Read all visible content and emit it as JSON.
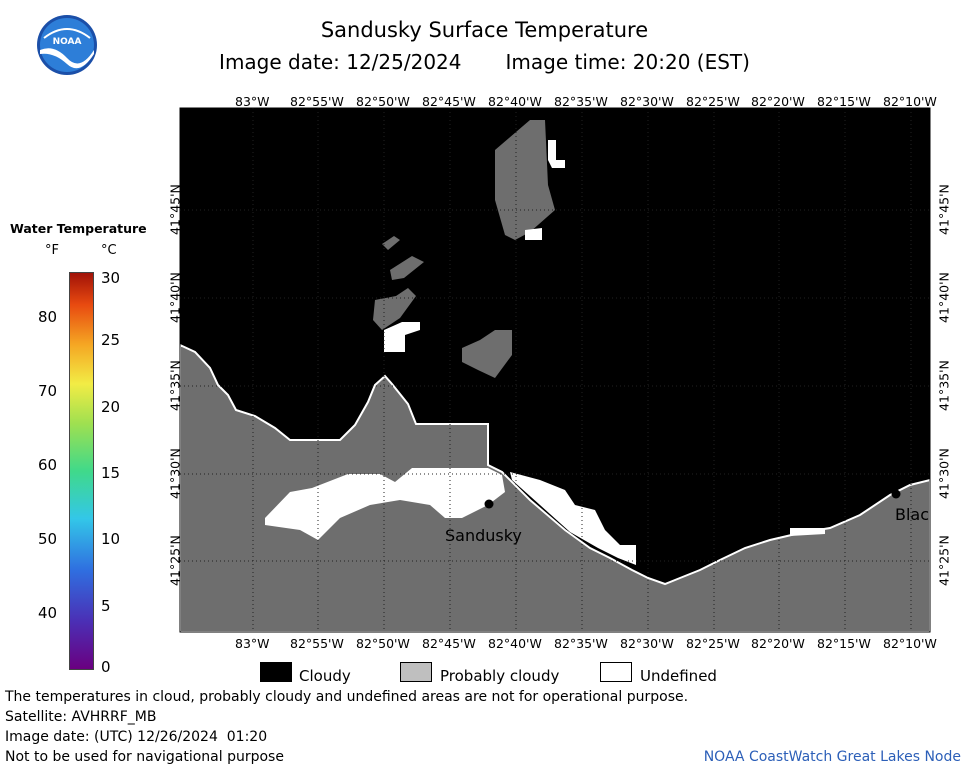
{
  "header": {
    "title": "Sandusky Surface Temperature",
    "image_date": "Image date: 12/25/2024",
    "image_time": "Image time: 20:20 (EST)"
  },
  "logo": {
    "text": "NOAA",
    "icon": "noaa-logo"
  },
  "map": {
    "lon_ticks": [
      "83°W",
      "82°55'W",
      "82°50'W",
      "82°45'W",
      "82°40'W",
      "82°35'W",
      "82°30'W",
      "82°25'W",
      "82°20'W",
      "82°15'W",
      "82°10'W"
    ],
    "lat_ticks": [
      "41°45'N",
      "41°40'N",
      "41°35'N",
      "41°30'N",
      "41°25'N"
    ],
    "places": {
      "sandusky": "Sandusky",
      "edge_label": "Blac"
    },
    "colors": {
      "cloudy": "#000000",
      "probably_cloudy": "#6e6e6e",
      "undefined": "#ffffff",
      "legend_probably": "#bfbfbf"
    }
  },
  "colorbar": {
    "title": "Water Temperature",
    "unit_f": "°F",
    "unit_c": "°C",
    "f_labels": [
      "80",
      "70",
      "60",
      "50",
      "40"
    ],
    "c_labels": [
      "30",
      "25",
      "20",
      "15",
      "10",
      "5",
      "0"
    ],
    "range_c": [
      0,
      30
    ]
  },
  "legend": {
    "cloudy": "Cloudy",
    "probably_cloudy": "Probably cloudy",
    "undefined": "Undefined"
  },
  "footer": {
    "disclaimer": "The temperatures in cloud, probably cloudy and undefined areas are not for operational purpose.",
    "satellite": "Satellite: AVHRRF_MB",
    "utc_date": "Image date: (UTC) 12/26/2024  01:20",
    "nav_warning": "Not to be used for navigational purpose",
    "node": "NOAA CoastWatch Great Lakes Node"
  }
}
